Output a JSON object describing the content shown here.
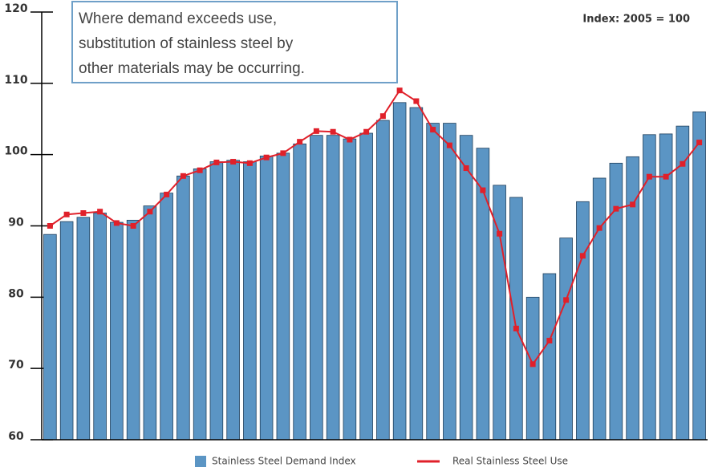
{
  "chart_data": {
    "type": "bar+line",
    "annotation": [
      "Where demand exceeds use,",
      "substitution of stainless steel by",
      "other materials may be occurring."
    ],
    "note": "Index: 2005 = 100",
    "ylim": [
      60,
      120
    ],
    "yticks": [
      60,
      70,
      80,
      90,
      100,
      110,
      120
    ],
    "series": [
      {
        "name": "Stainless Steel Demand Index",
        "color": "#5b95c4",
        "type": "bar",
        "values": [
          88.8,
          90.6,
          91.2,
          91.8,
          90.5,
          90.8,
          92.8,
          94.6,
          97.0,
          98.0,
          99.0,
          99.2,
          99.0,
          99.8,
          100.2,
          101.5,
          102.7,
          102.7,
          102.2,
          103.0,
          104.8,
          107.3,
          106.6,
          104.4,
          104.4,
          102.7,
          100.9,
          95.7,
          94.0,
          80.0,
          83.3,
          88.3,
          93.4,
          96.7,
          98.8,
          99.7,
          102.8,
          102.9,
          104.0,
          106.0
        ]
      },
      {
        "name": "Real Stainless Steel Use",
        "color": "#e0202a",
        "type": "line",
        "values": [
          90.0,
          91.6,
          91.8,
          92.0,
          90.4,
          90.0,
          92.0,
          94.4,
          97.0,
          97.8,
          98.9,
          99.0,
          98.8,
          99.6,
          100.2,
          101.8,
          103.3,
          103.2,
          102.1,
          103.2,
          105.4,
          109.0,
          107.5,
          103.5,
          101.3,
          98.1,
          95.0,
          88.9,
          75.6,
          70.6,
          73.9,
          79.6,
          85.8,
          89.7,
          92.4,
          93.0,
          96.9,
          96.9,
          98.7,
          101.7
        ]
      }
    ]
  }
}
